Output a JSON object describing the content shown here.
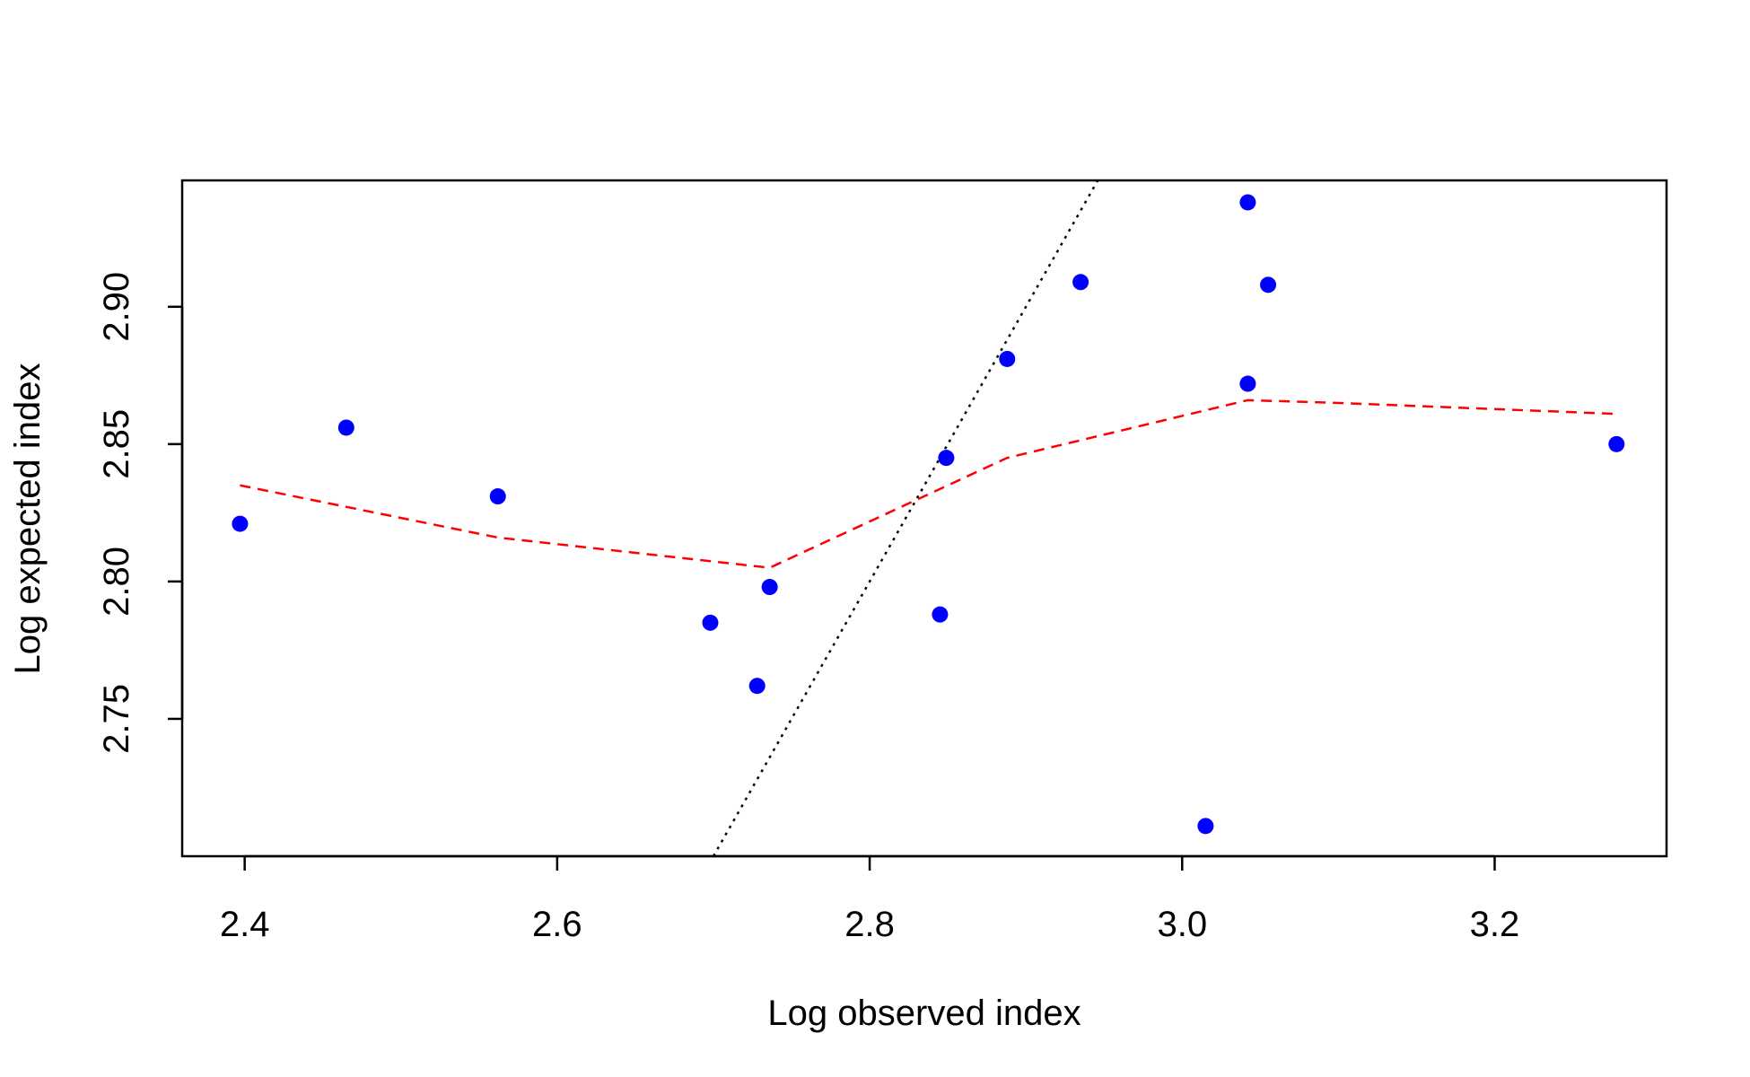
{
  "chart_data": {
    "type": "scatter",
    "title": "",
    "xlabel": "Log observed index",
    "ylabel": "Log expected index",
    "xlim": [
      2.36,
      3.31
    ],
    "ylim": [
      2.7,
      2.946
    ],
    "x_ticks": [
      2.4,
      2.6,
      2.8,
      3.0,
      3.2
    ],
    "x_tick_labels": [
      "2.4",
      "2.6",
      "2.8",
      "3.0",
      "3.2"
    ],
    "y_ticks": [
      2.75,
      2.8,
      2.85,
      2.9
    ],
    "y_tick_labels": [
      "2.75",
      "2.80",
      "2.85",
      "2.90"
    ],
    "grid": false,
    "points": {
      "color": "#0000ff",
      "x": [
        2.397,
        2.465,
        2.562,
        2.698,
        2.728,
        2.736,
        2.845,
        2.849,
        2.888,
        2.935,
        3.015,
        3.042,
        3.042,
        3.055,
        3.278
      ],
      "y": [
        2.821,
        2.856,
        2.831,
        2.785,
        2.762,
        2.798,
        2.788,
        2.845,
        2.881,
        2.909,
        2.711,
        2.938,
        2.872,
        2.908,
        2.85
      ]
    },
    "smooth_line": {
      "color": "#ff0000",
      "style": "dashed",
      "x": [
        2.397,
        2.562,
        2.736,
        2.888,
        3.042,
        3.1,
        3.278
      ],
      "y": [
        2.835,
        2.816,
        2.805,
        2.845,
        2.866,
        2.865,
        2.861
      ]
    },
    "identity_line": {
      "color": "#000000",
      "style": "dotted",
      "x": [
        2.7,
        2.946
      ],
      "y": [
        2.7,
        2.946
      ]
    }
  }
}
